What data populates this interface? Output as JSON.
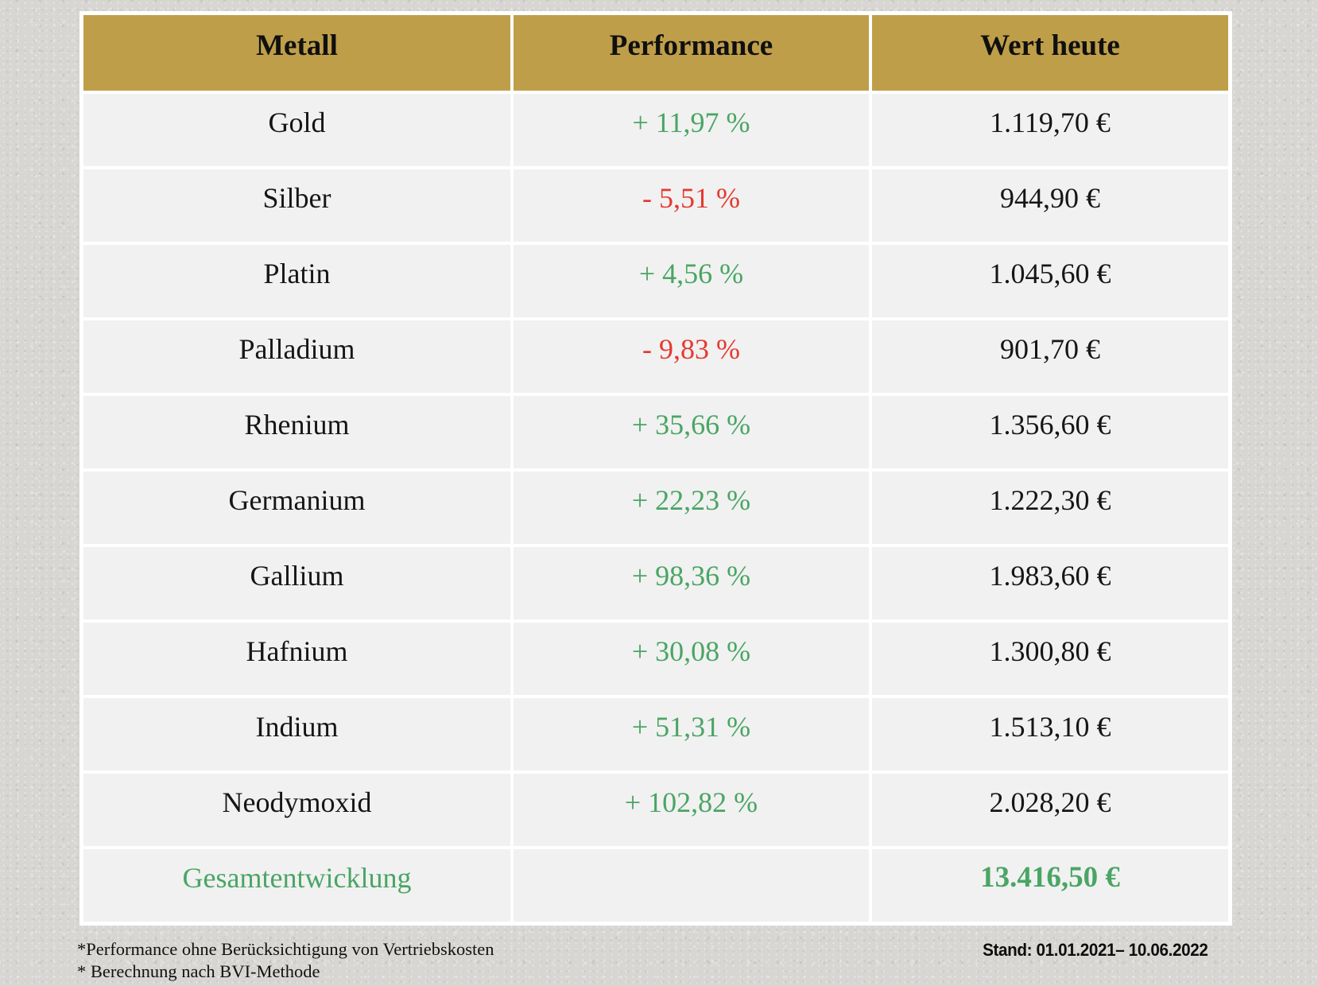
{
  "colors": {
    "page_bg": "#d7d6d3",
    "header_bg": "#bf9e4a",
    "row_bg": "#f1f1f1",
    "positive": "#4aa564",
    "negative": "#e43a30"
  },
  "table": {
    "columns": [
      "Metall",
      "Performance",
      "Wert heute"
    ],
    "rows": [
      {
        "metal": "Gold",
        "performance": "+ 11,97 %",
        "trend": "up",
        "value": "1.119,70 €"
      },
      {
        "metal": "Silber",
        "performance": "- 5,51 %",
        "trend": "down",
        "value": "944,90 €"
      },
      {
        "metal": "Platin",
        "performance": "+ 4,56 %",
        "trend": "up",
        "value": "1.045,60 €"
      },
      {
        "metal": "Palladium",
        "performance": "- 9,83 %",
        "trend": "down",
        "value": "901,70 €"
      },
      {
        "metal": "Rhenium",
        "performance": "+ 35,66 %",
        "trend": "up",
        "value": "1.356,60 €"
      },
      {
        "metal": "Germanium",
        "performance": "+ 22,23 %",
        "trend": "up",
        "value": "1.222,30 €"
      },
      {
        "metal": "Gallium",
        "performance": "+ 98,36 %",
        "trend": "up",
        "value": "1.983,60 €"
      },
      {
        "metal": "Hafnium",
        "performance": "+ 30,08 %",
        "trend": "up",
        "value": "1.300,80 €"
      },
      {
        "metal": "Indium",
        "performance": "+ 51,31 %",
        "trend": "up",
        "value": "1.513,10 €"
      },
      {
        "metal": "Neodymoxid",
        "performance": "+ 102,82 %",
        "trend": "up",
        "value": "2.028,20 €"
      }
    ],
    "total_row": {
      "label": "Gesamtentwicklung",
      "performance": "",
      "value": "13.416,50 €"
    }
  },
  "footer": {
    "note1": "*Performance ohne Berücksichtigung von Vertriebskosten",
    "note2": "* Berechnung nach BVI-Methode",
    "stand": "Stand: 01.01.2021– 10.06.2022"
  },
  "chart_data": {
    "type": "table",
    "columns": [
      "Metall",
      "Performance",
      "Wert heute"
    ],
    "rows": [
      [
        "Gold",
        "+ 11,97 %",
        "1.119,70 €"
      ],
      [
        "Silber",
        "- 5,51 %",
        "944,90 €"
      ],
      [
        "Platin",
        "+ 4,56 %",
        "1.045,60 €"
      ],
      [
        "Palladium",
        "- 9,83 %",
        "901,70 €"
      ],
      [
        "Rhenium",
        "+ 35,66 %",
        "1.356,60 €"
      ],
      [
        "Germanium",
        "+ 22,23 %",
        "1.222,30 €"
      ],
      [
        "Gallium",
        "+ 98,36 %",
        "1.983,60 €"
      ],
      [
        "Hafnium",
        "+ 30,08 %",
        "1.300,80 €"
      ],
      [
        "Indium",
        "+ 51,31 %",
        "1.513,10 €"
      ],
      [
        "Neodymoxid",
        "+ 102,82 %",
        "2.028,20 €"
      ]
    ],
    "performance_pct": [
      11.97,
      -5.51,
      4.56,
      -9.83,
      35.66,
      22.23,
      98.36,
      30.08,
      51.31,
      102.82
    ],
    "values_eur": [
      1119.7,
      944.9,
      1045.6,
      901.7,
      1356.6,
      1222.3,
      1983.6,
      1300.8,
      1513.1,
      2028.2
    ],
    "total_label": "Gesamtentwicklung",
    "total_eur": 13416.5,
    "period": "01.01.2021–10.06.2022"
  }
}
